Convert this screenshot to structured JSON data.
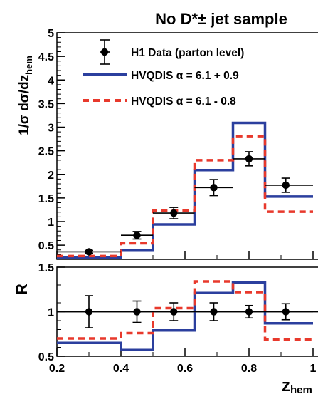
{
  "chart_data": [
    {
      "type": "line",
      "title": "No D*± jet sample",
      "ylabel": "1/σ dσ/dz_hem",
      "ylabel_parts": {
        "main": "1/σ dσ/dz",
        "sub": "hem"
      },
      "xlim": [
        0.2,
        1.0
      ],
      "ylim": [
        0.2,
        5.0
      ],
      "y_ticks": [
        0.5,
        1,
        1.5,
        2,
        2.5,
        3,
        3.5,
        4,
        4.5,
        5
      ],
      "y_tick_labels": [
        "0.5",
        "1",
        "1.5",
        "2",
        "2.5",
        "3",
        "3.5",
        "4",
        "4.5",
        "5"
      ],
      "bin_edges": [
        0.2,
        0.4,
        0.5,
        0.63,
        0.75,
        0.85,
        1.0
      ],
      "legend": {
        "position": "top-right",
        "entries": [
          {
            "label": "H1 Data (parton level)",
            "style": "data"
          },
          {
            "label": "HVQDIS  α = 6.1 + 0.9",
            "style": "solid",
            "color": "#2b3f9e"
          },
          {
            "label": "HVQDIS  α = 6.1 - 0.8",
            "style": "dashed",
            "color": "#e8392c"
          }
        ]
      },
      "series": [
        {
          "name": "H1 Data (parton level)",
          "style": "points",
          "color": "#000000",
          "points": [
            {
              "x": 0.3,
              "y": 0.36,
              "xerr_lo": 0.1,
              "xerr_hi": 0.1,
              "yerr": 0.03
            },
            {
              "x": 0.45,
              "y": 0.71,
              "xerr_lo": 0.05,
              "xerr_hi": 0.05,
              "yerr": 0.08
            },
            {
              "x": 0.565,
              "y": 1.18,
              "xerr_lo": 0.065,
              "xerr_hi": 0.065,
              "yerr": 0.12
            },
            {
              "x": 0.69,
              "y": 1.72,
              "xerr_lo": 0.06,
              "xerr_hi": 0.06,
              "yerr": 0.17
            },
            {
              "x": 0.8,
              "y": 2.33,
              "xerr_lo": 0.05,
              "xerr_hi": 0.05,
              "yerr": 0.15
            },
            {
              "x": 0.915,
              "y": 1.77,
              "xerr_lo": 0.065,
              "xerr_hi": 0.085,
              "yerr": 0.15
            }
          ]
        },
        {
          "name": "HVQDIS  α = 6.1 + 0.9",
          "style": "solid-step",
          "color": "#2b3f9e",
          "values": [
            0.24,
            0.4,
            0.94,
            2.09,
            3.09,
            1.53
          ]
        },
        {
          "name": "HVQDIS  α = 6.1 - 0.8",
          "style": "dashed-step",
          "color": "#e8392c",
          "values": [
            0.27,
            0.54,
            1.23,
            2.3,
            2.81,
            1.21
          ]
        }
      ]
    },
    {
      "type": "line",
      "ylabel": "R",
      "xlabel": "z_hem",
      "xlabel_parts": {
        "main": "z",
        "sub": "hem"
      },
      "xlim": [
        0.2,
        1.0
      ],
      "ylim": [
        0.5,
        1.5
      ],
      "x_ticks": [
        0.2,
        0.4,
        0.6,
        0.8,
        1.0
      ],
      "x_tick_labels": [
        "0.2",
        "0.4",
        "0.6",
        "0.8",
        "1"
      ],
      "y_ticks": [
        0.5,
        1,
        1.5
      ],
      "y_tick_labels": [
        "0.5",
        "1",
        "1.5"
      ],
      "reference_line": 1.0,
      "bin_edges": [
        0.2,
        0.4,
        0.5,
        0.63,
        0.75,
        0.85,
        1.0
      ],
      "series": [
        {
          "name": "H1 Data (parton level)",
          "style": "points",
          "color": "#000000",
          "points": [
            {
              "x": 0.3,
              "y": 1.0,
              "xerr_lo": 0.1,
              "xerr_hi": 0.1,
              "yerr": 0.18
            },
            {
              "x": 0.45,
              "y": 1.0,
              "xerr_lo": 0.05,
              "xerr_hi": 0.05,
              "yerr": 0.12
            },
            {
              "x": 0.565,
              "y": 1.0,
              "xerr_lo": 0.065,
              "xerr_hi": 0.065,
              "yerr": 0.1
            },
            {
              "x": 0.69,
              "y": 1.0,
              "xerr_lo": 0.06,
              "xerr_hi": 0.06,
              "yerr": 0.1
            },
            {
              "x": 0.8,
              "y": 1.0,
              "xerr_lo": 0.05,
              "xerr_hi": 0.05,
              "yerr": 0.07
            },
            {
              "x": 0.915,
              "y": 1.0,
              "xerr_lo": 0.065,
              "xerr_hi": 0.085,
              "yerr": 0.09
            }
          ]
        },
        {
          "name": "HVQDIS  α = 6.1 + 0.9",
          "style": "solid-step",
          "color": "#2b3f9e",
          "values": [
            0.65,
            0.57,
            0.79,
            1.21,
            1.33,
            0.87
          ]
        },
        {
          "name": "HVQDIS  α = 6.1 - 0.8",
          "style": "dashed-step",
          "color": "#e8392c",
          "values": [
            0.7,
            0.76,
            1.04,
            1.34,
            1.22,
            0.69
          ]
        }
      ]
    }
  ]
}
